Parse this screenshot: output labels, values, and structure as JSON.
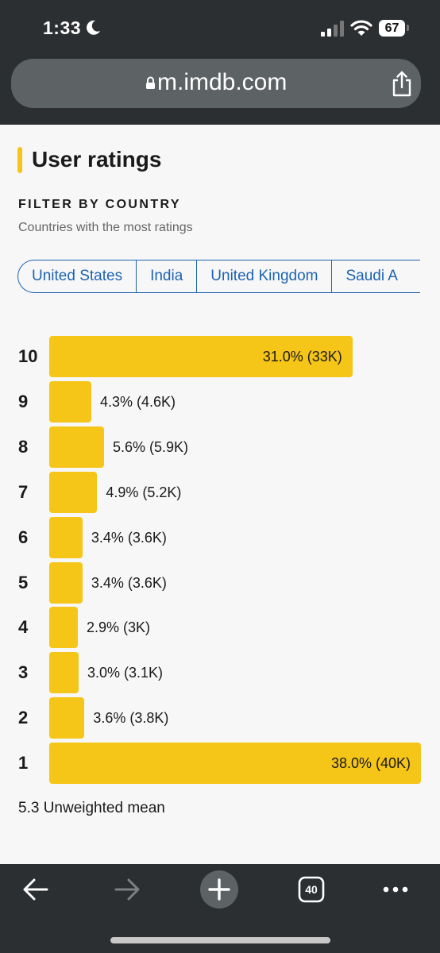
{
  "status_bar": {
    "time": "1:33",
    "battery": "67"
  },
  "browser": {
    "url": "m.imdb.com",
    "tab_count": "40"
  },
  "section": {
    "title": "User ratings",
    "filter_heading": "FILTER BY COUNTRY",
    "filter_subtitle": "Countries with the most ratings",
    "countries": [
      "United States",
      "India",
      "United Kingdom",
      "Saudi Arabia"
    ],
    "countries_visible": [
      "United States",
      "India",
      "United Kingdom",
      "Saudi A"
    ]
  },
  "ratings": [
    {
      "rating": "10",
      "percent": 31.0,
      "value_label": "31.0% (33K)"
    },
    {
      "rating": "9",
      "percent": 4.3,
      "value_label": "4.3% (4.6K)"
    },
    {
      "rating": "8",
      "percent": 5.6,
      "value_label": "5.6% (5.9K)"
    },
    {
      "rating": "7",
      "percent": 4.9,
      "value_label": "4.9% (5.2K)"
    },
    {
      "rating": "6",
      "percent": 3.4,
      "value_label": "3.4% (3.6K)"
    },
    {
      "rating": "5",
      "percent": 3.4,
      "value_label": "3.4% (3.6K)"
    },
    {
      "rating": "4",
      "percent": 2.9,
      "value_label": "2.9% (3K)"
    },
    {
      "rating": "3",
      "percent": 3.0,
      "value_label": "3.0% (3.1K)"
    },
    {
      "rating": "2",
      "percent": 3.6,
      "value_label": "3.6% (3.8K)"
    },
    {
      "rating": "1",
      "percent": 38.0,
      "value_label": "38.0% (40K)"
    }
  ],
  "mean_text": "5.3 Unweighted mean",
  "colors": {
    "accent": "#f5c518",
    "link": "#1d63b3",
    "chrome": "#2c2f31"
  }
}
